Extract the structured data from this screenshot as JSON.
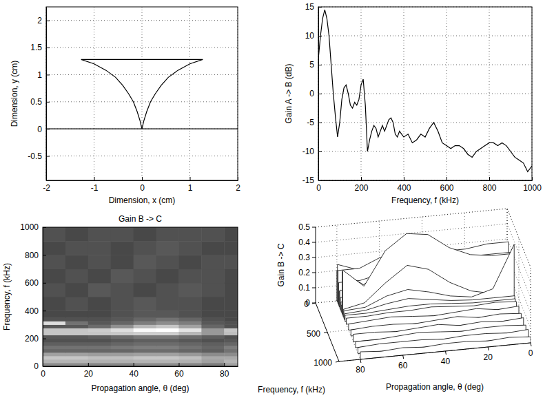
{
  "chart_data": [
    {
      "type": "line",
      "x_label": "Dimension, x (cm)",
      "y_label": "Dimension, y (cm)",
      "xlim": [
        -2,
        2
      ],
      "ylim": [
        -0.95,
        2.25
      ],
      "xticks": [
        -2,
        -1,
        0,
        1,
        2
      ],
      "yticks": [
        -0.5,
        0,
        0.5,
        1,
        1.5,
        2
      ],
      "grid": true,
      "color": "#000000",
      "series": [
        {
          "x": [
            -2,
            2
          ],
          "values": [
            0,
            0
          ]
        },
        {
          "x": [
            0,
            -0.04,
            -0.1,
            -0.18,
            -0.28,
            -0.4,
            -0.55,
            -0.75,
            -1.0,
            -1.27,
            1.27,
            1.0,
            0.75,
            0.55,
            0.4,
            0.28,
            0.18,
            0.1,
            0.04,
            0
          ],
          "values": [
            0,
            0.15,
            0.32,
            0.5,
            0.65,
            0.8,
            0.95,
            1.08,
            1.2,
            1.28,
            1.28,
            1.2,
            1.08,
            0.95,
            0.8,
            0.65,
            0.5,
            0.32,
            0.15,
            0
          ]
        }
      ]
    },
    {
      "type": "line",
      "x_label": "Frequency, f (kHz)",
      "y_label": "Gain A -> B (dB)",
      "xlim": [
        0,
        1000
      ],
      "ylim": [
        -15,
        15
      ],
      "xticks": [
        0,
        200,
        400,
        600,
        800,
        1000
      ],
      "yticks": [
        -15,
        -10,
        -5,
        0,
        5,
        10,
        15
      ],
      "grid": true,
      "color": "#000000",
      "series": [
        {
          "x": [
            0,
            10,
            20,
            30,
            40,
            50,
            60,
            70,
            80,
            90,
            100,
            110,
            120,
            130,
            140,
            150,
            160,
            170,
            180,
            190,
            200,
            210,
            220,
            230,
            240,
            250,
            260,
            270,
            280,
            290,
            300,
            310,
            320,
            330,
            340,
            350,
            360,
            370,
            380,
            390,
            400,
            420,
            440,
            460,
            480,
            500,
            520,
            540,
            560,
            580,
            600,
            620,
            640,
            660,
            680,
            700,
            720,
            740,
            760,
            780,
            800,
            820,
            840,
            860,
            880,
            900,
            920,
            940,
            960,
            980,
            1000
          ],
          "values": [
            6,
            10,
            13,
            14.5,
            13,
            10,
            5,
            0,
            -4,
            -7.5,
            -5,
            -1,
            1,
            1.5,
            0,
            -2,
            -2.5,
            -1.5,
            -2,
            -1,
            1.5,
            2.5,
            -2,
            -10,
            -8,
            -6.5,
            -5.5,
            -6,
            -7.5,
            -6.5,
            -5.5,
            -6.5,
            -5.5,
            -4.5,
            -4.2,
            -5,
            -7,
            -7.5,
            -6.5,
            -7,
            -7.5,
            -7,
            -8.5,
            -8,
            -7,
            -7.5,
            -6,
            -5,
            -6.5,
            -8.5,
            -9,
            -9.5,
            -9,
            -9,
            -9.5,
            -10.5,
            -11,
            -10,
            -9.5,
            -9,
            -8.5,
            -8.5,
            -9,
            -8.5,
            -9,
            -10,
            -11,
            -11.5,
            -12,
            -13.5,
            -12.5
          ]
        }
      ]
    },
    {
      "type": "heatmap",
      "title": "Gain B -> C",
      "x_label": "Propagation angle, θ (deg)",
      "y_label": "Frequency, f (kHz)",
      "xlim": [
        0,
        86
      ],
      "ylim": [
        0,
        1000
      ],
      "xticks": [
        0,
        20,
        40,
        60,
        80
      ],
      "yticks": [
        0,
        200,
        400,
        600,
        800,
        1000
      ],
      "zlim": [
        0,
        0.5
      ],
      "x_edges": [
        0,
        10,
        20,
        30,
        40,
        50,
        60,
        70,
        80,
        86
      ],
      "y_edges": [
        0,
        25,
        50,
        75,
        100,
        125,
        150,
        175,
        200,
        225,
        250,
        275,
        300,
        325,
        350,
        400,
        500,
        600,
        700,
        800,
        900,
        1000
      ],
      "cells": [
        [
          0.15,
          0.15,
          0.14,
          0.14,
          0.15,
          0.15,
          0.14,
          0.12,
          0.2
        ],
        [
          0.25,
          0.25,
          0.24,
          0.24,
          0.25,
          0.25,
          0.24,
          0.2,
          0.25
        ],
        [
          0.3,
          0.3,
          0.28,
          0.28,
          0.3,
          0.3,
          0.28,
          0.22,
          0.22
        ],
        [
          0.2,
          0.2,
          0.19,
          0.19,
          0.2,
          0.2,
          0.18,
          0.15,
          0.15
        ],
        [
          0.08,
          0.08,
          0.08,
          0.08,
          0.09,
          0.09,
          0.08,
          0.07,
          0.1
        ],
        [
          0.1,
          0.1,
          0.1,
          0.11,
          0.12,
          0.12,
          0.1,
          0.08,
          0.12
        ],
        [
          0.07,
          0.07,
          0.07,
          0.08,
          0.09,
          0.09,
          0.08,
          0.07,
          0.08
        ],
        [
          0.05,
          0.05,
          0.05,
          0.06,
          0.07,
          0.07,
          0.06,
          0.05,
          0.06
        ],
        [
          0.06,
          0.06,
          0.07,
          0.09,
          0.11,
          0.11,
          0.09,
          0.07,
          0.05
        ],
        [
          0.3,
          0.3,
          0.3,
          0.31,
          0.33,
          0.33,
          0.26,
          0.18,
          0.28
        ],
        [
          0.3,
          0.3,
          0.32,
          0.38,
          0.48,
          0.5,
          0.4,
          0.18,
          0.3
        ],
        [
          0.06,
          0.06,
          0.09,
          0.16,
          0.26,
          0.3,
          0.2,
          0.08,
          0.05
        ],
        [
          0.38,
          0.1,
          0.06,
          0.08,
          0.12,
          0.15,
          0.12,
          0.06,
          0.05
        ],
        [
          0.05,
          0.05,
          0.05,
          0.06,
          0.08,
          0.1,
          0.08,
          0.05,
          0.04
        ],
        [
          0.04,
          0.04,
          0.04,
          0.05,
          0.06,
          0.06,
          0.05,
          0.04,
          0.04
        ],
        [
          0.04,
          0.05,
          0.04,
          0.05,
          0.06,
          0.05,
          0.05,
          0.04,
          0.04
        ],
        [
          0.05,
          0.04,
          0.06,
          0.05,
          0.04,
          0.05,
          0.06,
          0.05,
          0.04
        ],
        [
          0.04,
          0.05,
          0.04,
          0.06,
          0.05,
          0.04,
          0.05,
          0.05,
          0.04
        ],
        [
          0.05,
          0.04,
          0.05,
          0.04,
          0.06,
          0.05,
          0.04,
          0.05,
          0.05
        ],
        [
          0.04,
          0.05,
          0.05,
          0.04,
          0.05,
          0.06,
          0.05,
          0.04,
          0.04
        ],
        [
          0.05,
          0.04,
          0.05,
          0.05,
          0.04,
          0.05,
          0.05,
          0.05,
          0.04
        ]
      ]
    },
    {
      "type": "waterfall",
      "x_label": "Propagation angle, θ (deg)",
      "y_label": "Frequency, f (kHz)",
      "z_label": "Gain B -> C",
      "xlim": [
        0,
        90
      ],
      "ylim": [
        0,
        1000
      ],
      "zlim": [
        0,
        0.5
      ],
      "xticks": [
        0,
        20,
        40,
        60,
        80
      ],
      "yticks": [
        0,
        500,
        1000
      ],
      "zticks": [
        0,
        0.1,
        0.2,
        0.3,
        0.4,
        0.5
      ],
      "grid": true,
      "color": "#000000",
      "x": [
        0,
        10,
        20,
        30,
        40,
        50,
        60,
        70,
        80
      ],
      "y": [
        0,
        25,
        50,
        75,
        100,
        125,
        150,
        175,
        200,
        225,
        250,
        275,
        300,
        325,
        350,
        400,
        500,
        600,
        700,
        800,
        900,
        1000
      ],
      "z": [
        [
          0.15,
          0.15,
          0.14,
          0.14,
          0.15,
          0.15,
          0.14,
          0.12,
          0.2
        ],
        [
          0.25,
          0.25,
          0.24,
          0.24,
          0.25,
          0.25,
          0.24,
          0.2,
          0.25
        ],
        [
          0.3,
          0.3,
          0.28,
          0.28,
          0.3,
          0.3,
          0.28,
          0.22,
          0.22
        ],
        [
          0.2,
          0.2,
          0.19,
          0.19,
          0.2,
          0.2,
          0.18,
          0.15,
          0.15
        ],
        [
          0.08,
          0.08,
          0.08,
          0.08,
          0.09,
          0.09,
          0.08,
          0.07,
          0.1
        ],
        [
          0.1,
          0.1,
          0.1,
          0.11,
          0.12,
          0.12,
          0.1,
          0.08,
          0.12
        ],
        [
          0.07,
          0.07,
          0.07,
          0.08,
          0.09,
          0.09,
          0.08,
          0.07,
          0.08
        ],
        [
          0.05,
          0.05,
          0.05,
          0.06,
          0.07,
          0.07,
          0.06,
          0.05,
          0.06
        ],
        [
          0.06,
          0.06,
          0.07,
          0.09,
          0.11,
          0.11,
          0.09,
          0.07,
          0.05
        ],
        [
          0.3,
          0.3,
          0.3,
          0.31,
          0.33,
          0.33,
          0.26,
          0.18,
          0.28
        ],
        [
          0.3,
          0.3,
          0.32,
          0.38,
          0.48,
          0.5,
          0.4,
          0.18,
          0.3
        ],
        [
          0.06,
          0.06,
          0.09,
          0.16,
          0.26,
          0.3,
          0.2,
          0.08,
          0.05
        ],
        [
          0.38,
          0.1,
          0.06,
          0.08,
          0.12,
          0.15,
          0.12,
          0.06,
          0.05
        ],
        [
          0.05,
          0.05,
          0.05,
          0.06,
          0.08,
          0.1,
          0.08,
          0.05,
          0.04
        ],
        [
          0.04,
          0.04,
          0.04,
          0.05,
          0.06,
          0.06,
          0.05,
          0.04,
          0.04
        ],
        [
          0.04,
          0.05,
          0.04,
          0.05,
          0.06,
          0.05,
          0.05,
          0.04,
          0.04
        ],
        [
          0.05,
          0.04,
          0.06,
          0.05,
          0.04,
          0.05,
          0.06,
          0.05,
          0.04
        ],
        [
          0.04,
          0.05,
          0.04,
          0.06,
          0.05,
          0.04,
          0.05,
          0.05,
          0.04
        ],
        [
          0.05,
          0.04,
          0.05,
          0.04,
          0.06,
          0.05,
          0.04,
          0.05,
          0.05
        ],
        [
          0.04,
          0.05,
          0.05,
          0.04,
          0.05,
          0.06,
          0.05,
          0.04,
          0.04
        ],
        [
          0.05,
          0.04,
          0.05,
          0.05,
          0.04,
          0.05,
          0.05,
          0.05,
          0.04
        ],
        [
          0.04,
          0.05,
          0.04,
          0.05,
          0.05,
          0.04,
          0.05,
          0.04,
          0.05
        ]
      ]
    }
  ]
}
